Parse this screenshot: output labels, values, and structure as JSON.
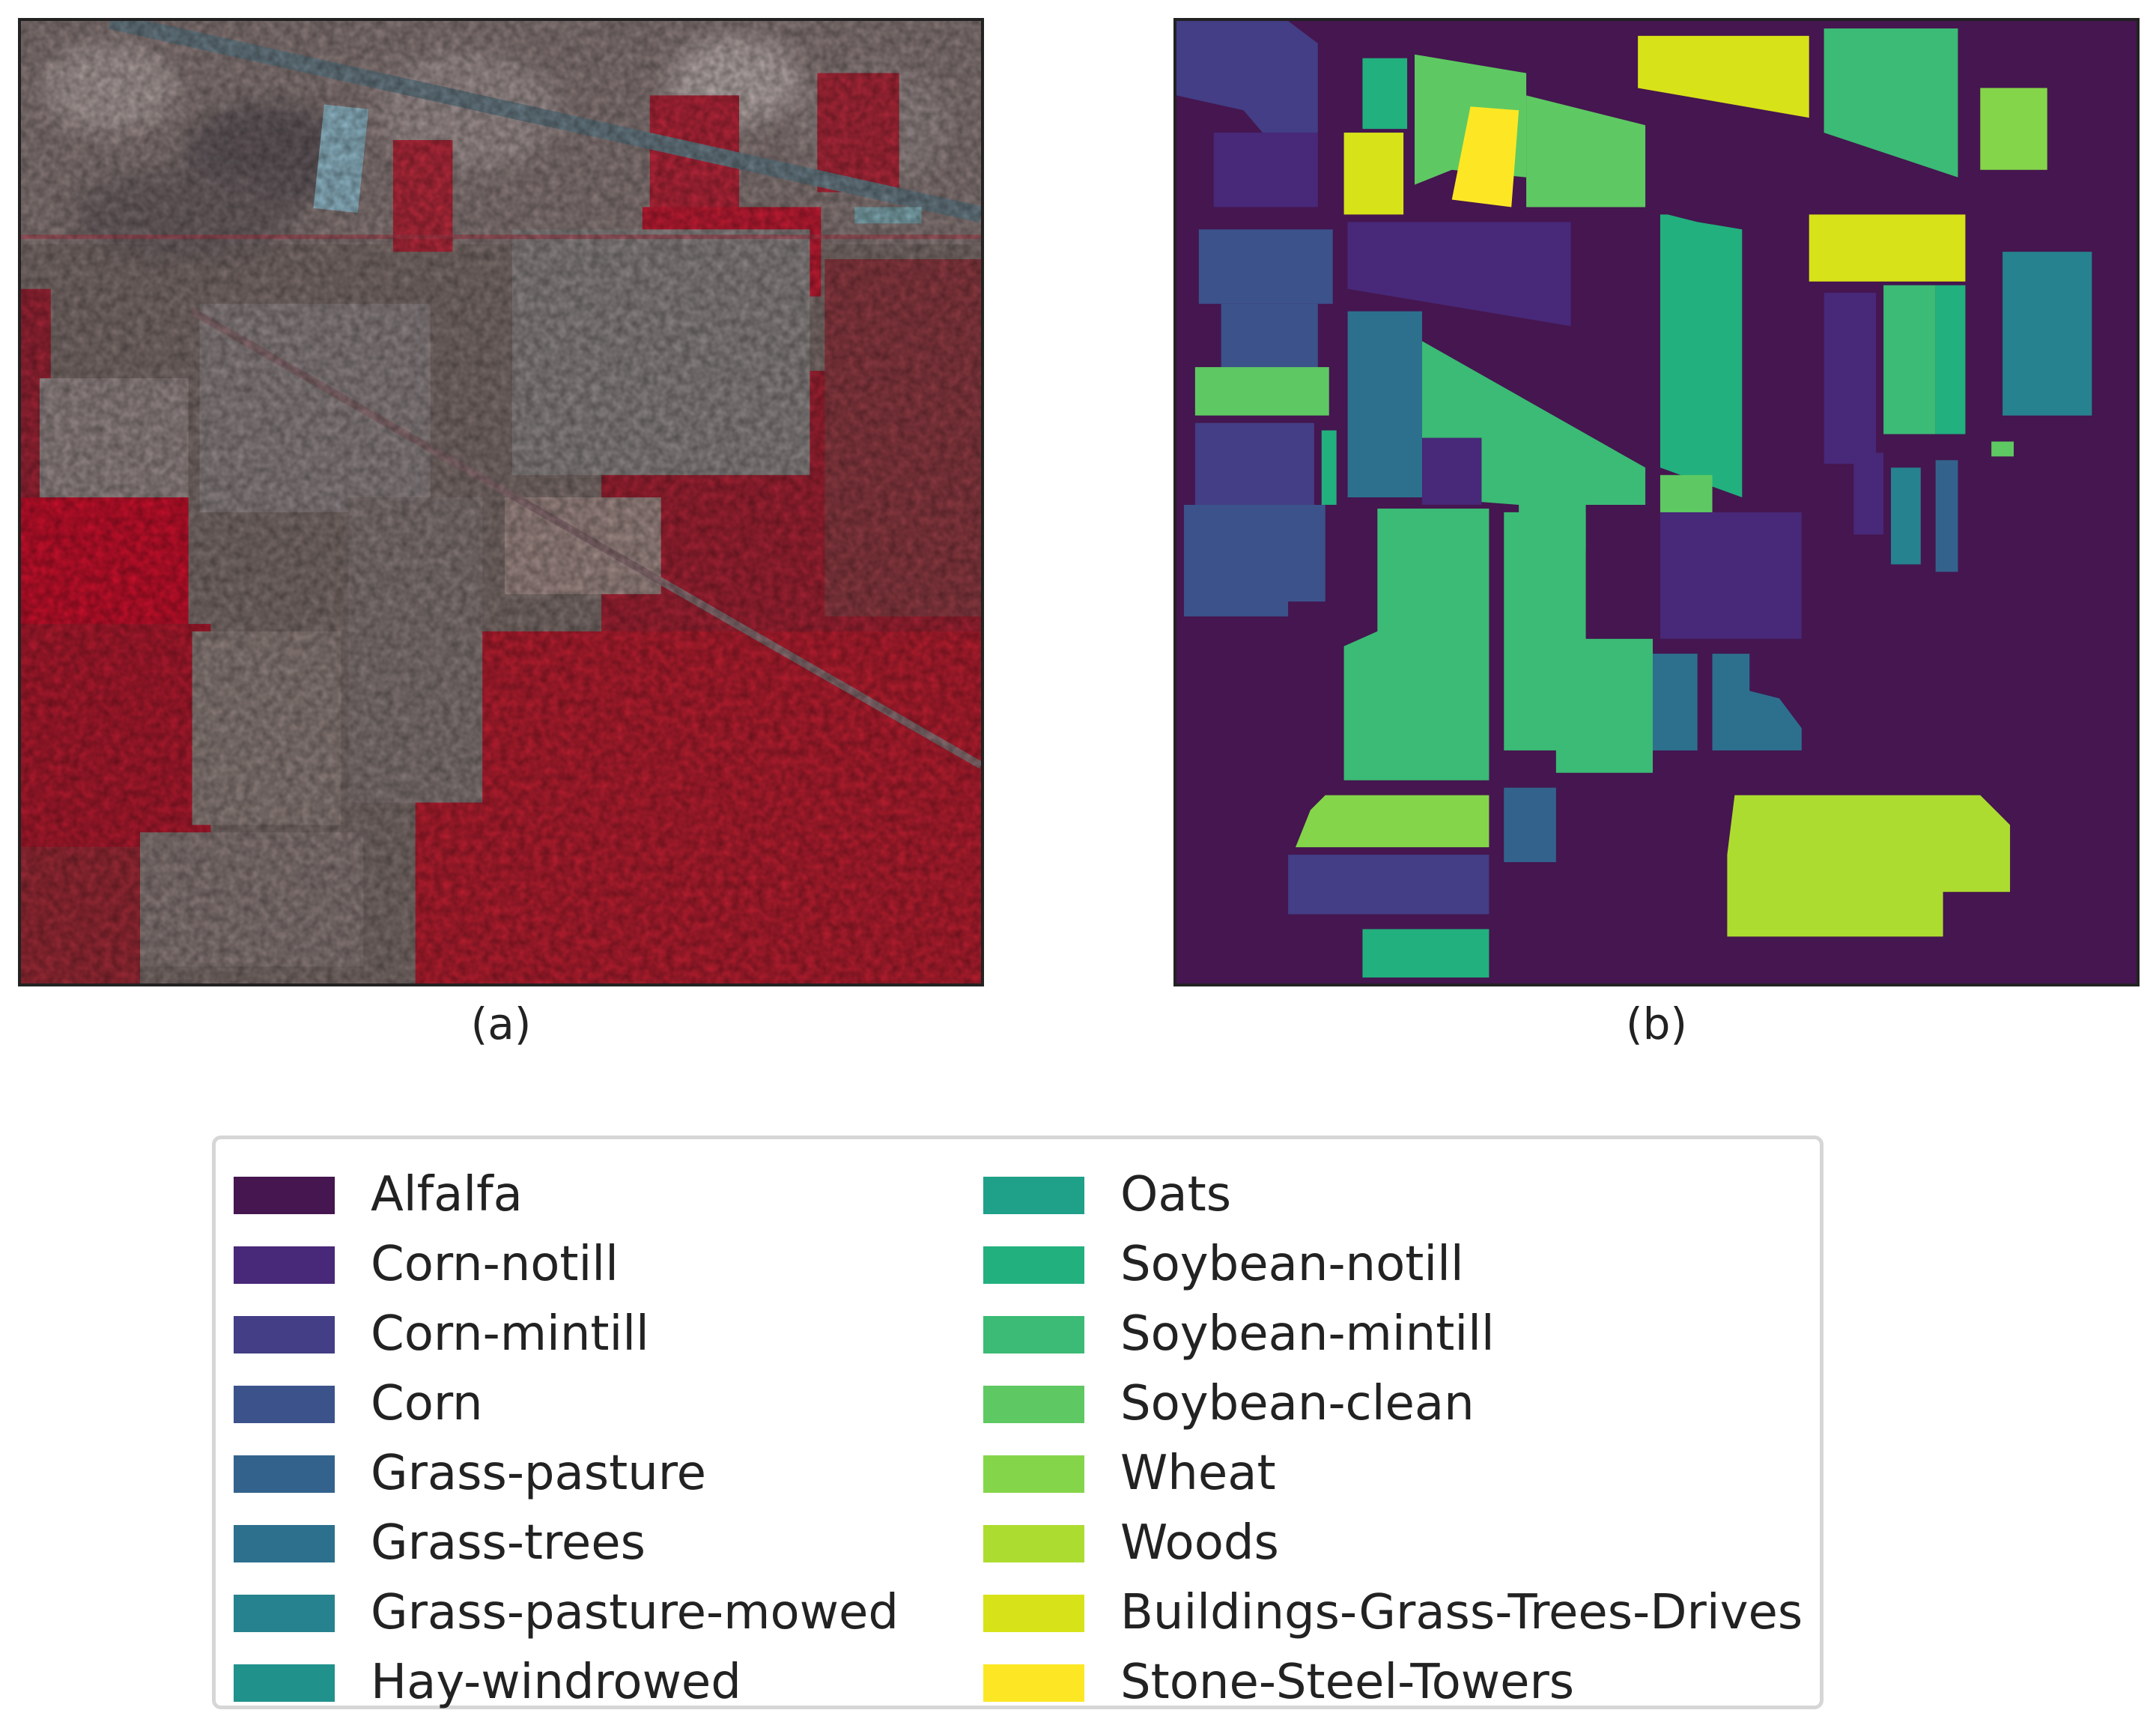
{
  "captions": {
    "a": "(a)",
    "b": "(b)"
  },
  "legend": {
    "left": [
      {
        "label": "Alfalfa",
        "color": "#45164f"
      },
      {
        "label": "Corn-notill",
        "color": "#482878"
      },
      {
        "label": "Corn-mintill",
        "color": "#433e85"
      },
      {
        "label": "Corn",
        "color": "#3b528b"
      },
      {
        "label": "Grass-pasture",
        "color": "#33638d"
      },
      {
        "label": "Grass-trees",
        "color": "#2d708e"
      },
      {
        "label": "Grass-pasture-mowed",
        "color": "#26828e"
      },
      {
        "label": "Hay-windrowed",
        "color": "#21918c"
      }
    ],
    "right": [
      {
        "label": "Oats",
        "color": "#1fa088"
      },
      {
        "label": "Soybean-notill",
        "color": "#22b07e"
      },
      {
        "label": "Soybean-mintill",
        "color": "#3bbb75"
      },
      {
        "label": "Soybean-clean",
        "color": "#5ec962"
      },
      {
        "label": "Wheat",
        "color": "#85d54a"
      },
      {
        "label": "Woods",
        "color": "#addc30"
      },
      {
        "label": "Buildings-Grass-Trees-Drives",
        "color": "#d8e219"
      },
      {
        "label": "Stone-Steel-Towers",
        "color": "#fde725"
      }
    ]
  }
}
